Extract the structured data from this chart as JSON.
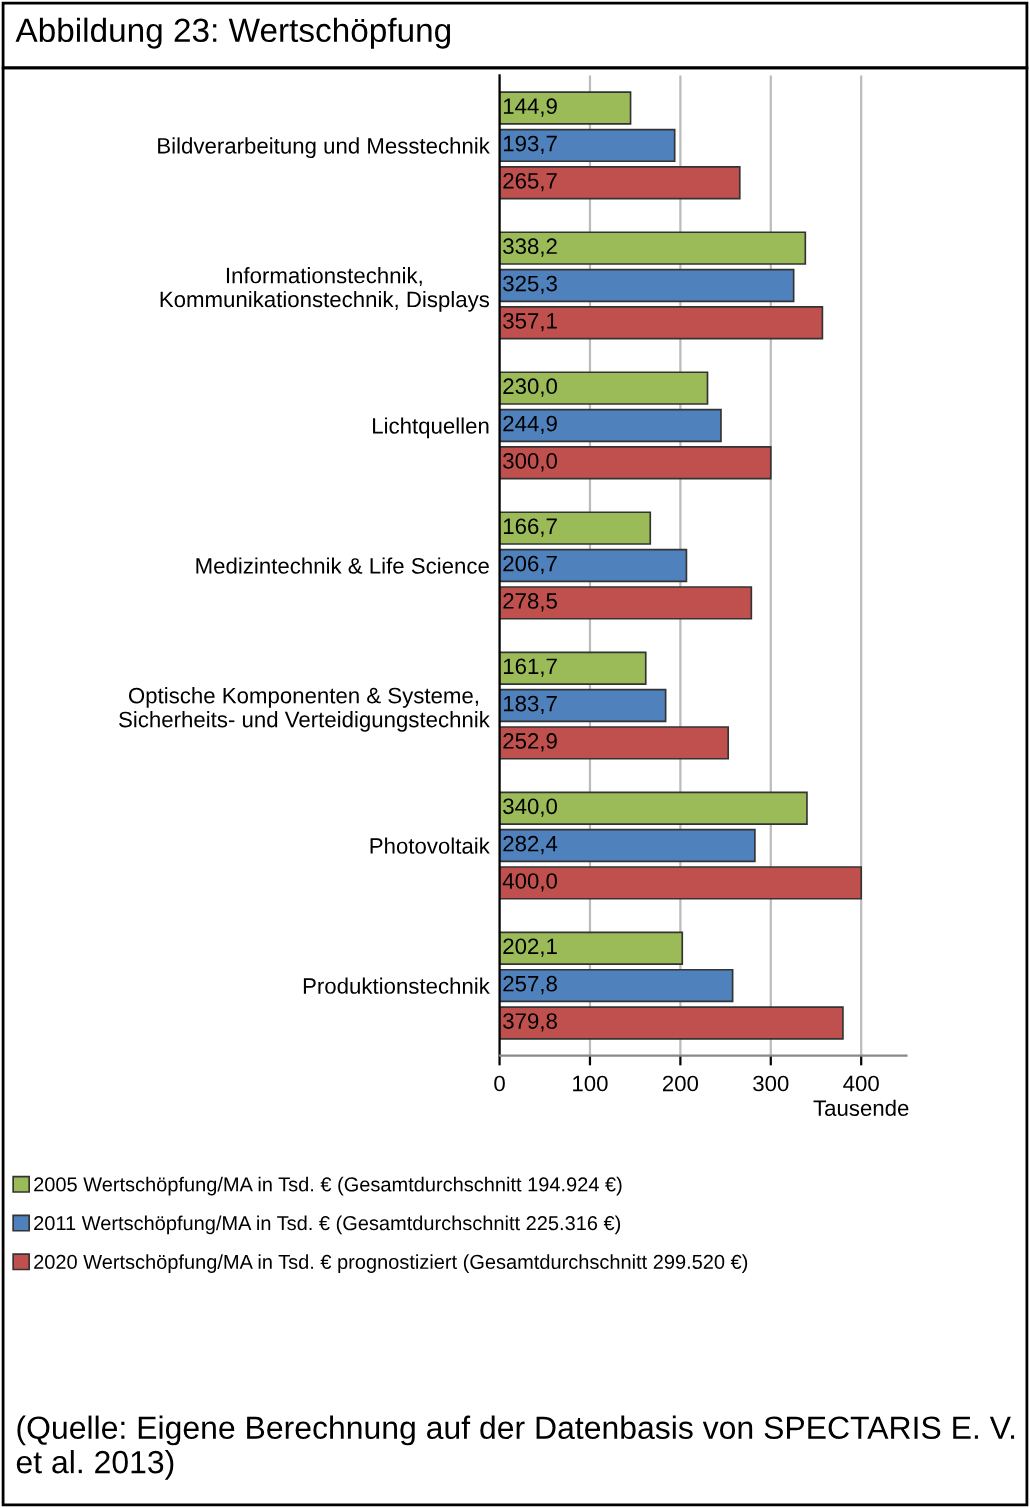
{
  "chart_data": {
    "type": "bar",
    "orientation": "horizontal",
    "title": "Abbildung 23: Wertschöpfung",
    "categories": [
      "Bildverarbeitung und Messtechnik",
      "Informationstechnik,\nKommunikationstechnik, Displays",
      "Lichtquellen",
      "Medizintechnik & Life Science",
      "Optische Komponenten & Systeme,\nSicherheits- und Verteidigungstechnik",
      "Photovoltaik",
      "Produktionstechnik"
    ],
    "series": [
      {
        "name": "2005 Wertschöpfung/MA in Tsd. € (Gesamtdurchschnitt 194.924 €)",
        "color": "#9bbb59",
        "values": [
          144.9,
          338.2,
          230.0,
          166.7,
          161.7,
          340.0,
          202.1
        ],
        "value_labels": [
          "144,9",
          "338,2",
          "230,0",
          "166,7",
          "161,7",
          "340,0",
          "202,1"
        ]
      },
      {
        "name": "2011 Wertschöpfung/MA in Tsd. € (Gesamtdurchschnitt 225.316 €)",
        "color": "#4f81bd",
        "values": [
          193.7,
          325.3,
          244.9,
          206.7,
          183.7,
          282.4,
          257.8
        ],
        "value_labels": [
          "193,7",
          "325,3",
          "244,9",
          "206,7",
          "183,7",
          "282,4",
          "257,8"
        ]
      },
      {
        "name": "2020 Wertschöpfung/MA in Tsd. € prognostiziert (Gesamtdurchschnitt 299.520 €)",
        "color": "#c0504d",
        "values": [
          265.7,
          357.1,
          300.0,
          278.5,
          252.9,
          400.0,
          379.8
        ],
        "value_labels": [
          "265,7",
          "357,1",
          "300,0",
          "278,5",
          "252,9",
          "400,0",
          "379,8"
        ]
      }
    ],
    "xlim": [
      0,
      450
    ],
    "xticks": [
      0,
      100,
      200,
      300,
      400
    ],
    "xlabel": "Tausende",
    "grid": "x",
    "legend": "bottom",
    "annotations": [
      "(Quelle: Eigene Berechnung auf der Datenbasis von SPECTARIS E. V. et al. 2013)"
    ]
  }
}
